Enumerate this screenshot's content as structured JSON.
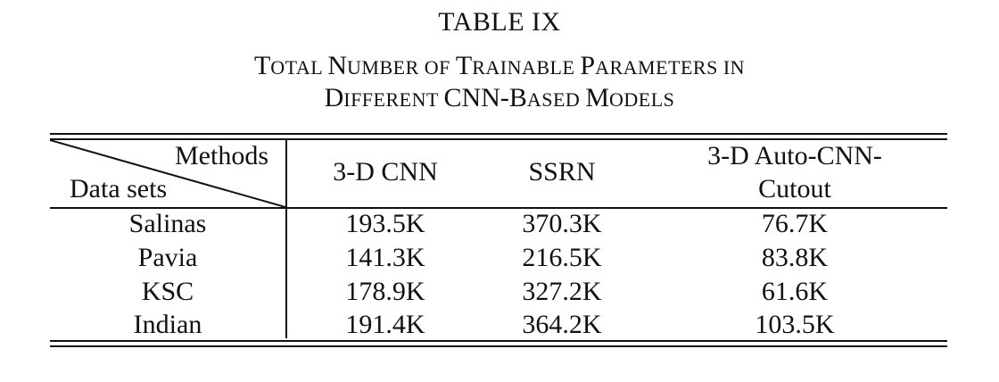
{
  "table": {
    "label": "TABLE IX",
    "caption_line1": [
      {
        "cap": "T",
        "rest": "OTAL "
      },
      {
        "cap": "N",
        "rest": "UMBER OF "
      },
      {
        "cap": "T",
        "rest": "RAINABLE "
      },
      {
        "cap": "P",
        "rest": "ARAMETERS IN"
      }
    ],
    "caption_line2": [
      {
        "cap": "D",
        "rest": "IFFERENT "
      },
      {
        "cap": "CNN-B",
        "rest": "ASED "
      },
      {
        "cap": "M",
        "rest": "ODELS"
      }
    ],
    "corner": {
      "top": "Methods",
      "bottom": "Data sets"
    },
    "columns": [
      "3-D CNN",
      "SSRN",
      "3-D Auto-CNN-",
      "Cutout"
    ],
    "rows": [
      {
        "name": "Salinas",
        "values": [
          "193.5K",
          "370.3K",
          "76.7K"
        ]
      },
      {
        "name": "Pavia",
        "values": [
          "141.3K",
          "216.5K",
          "83.8K"
        ]
      },
      {
        "name": "KSC",
        "values": [
          "178.9K",
          "327.2K",
          "61.6K"
        ]
      },
      {
        "name": "Indian",
        "values": [
          "191.4K",
          "364.2K",
          "103.5K"
        ]
      }
    ]
  }
}
